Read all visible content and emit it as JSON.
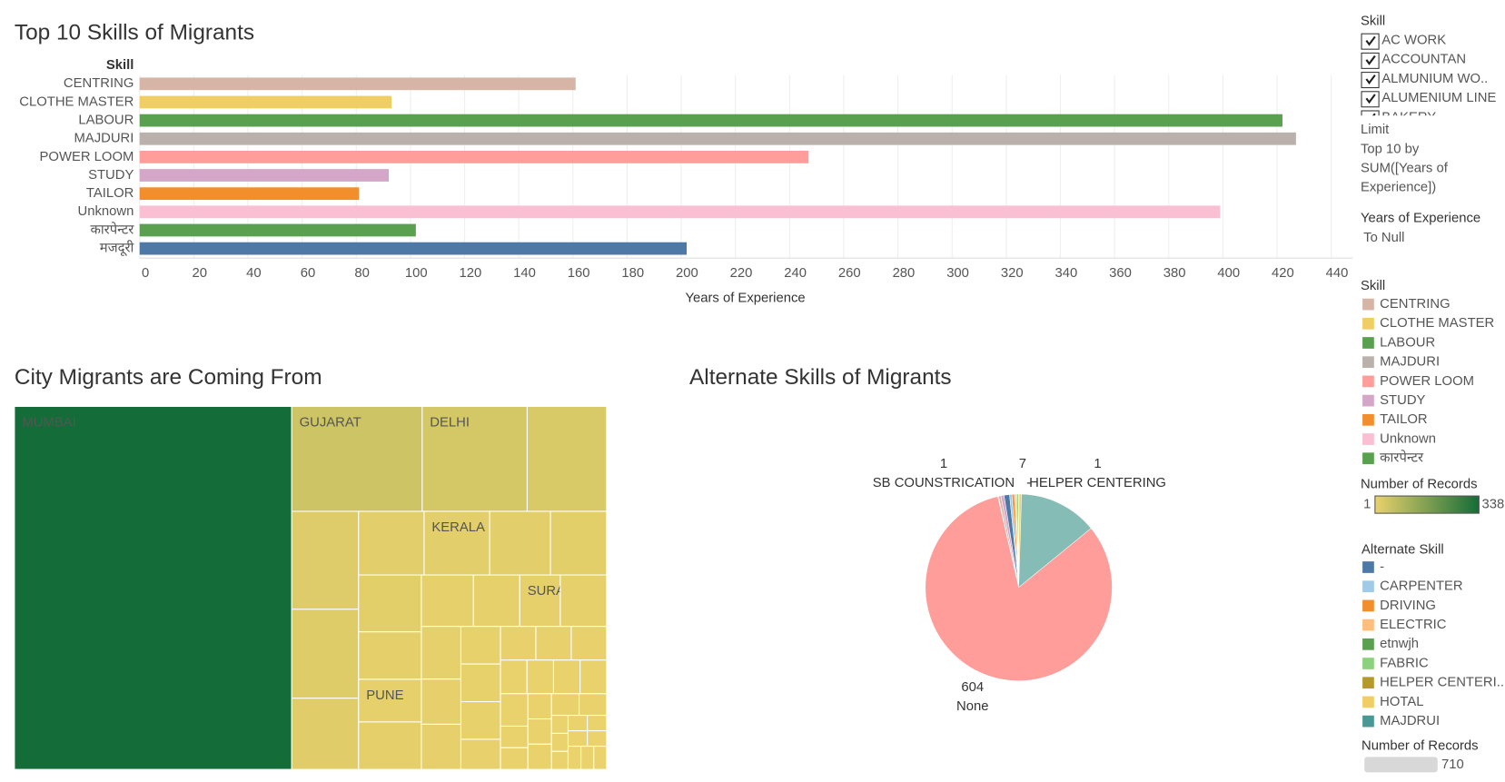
{
  "chart_data": [
    {
      "type": "bar",
      "title": "Top 10 Skills of Migrants",
      "y_label": "Skill",
      "x_label": "Years of Experience",
      "categories": [
        "CENTRING",
        "CLOTHE MASTER",
        "LABOUR",
        "MAJDURI",
        "POWER LOOM",
        "STUDY",
        "TAILOR",
        "Unknown",
        "कारपेन्टर",
        "मजदूरी"
      ],
      "values": [
        161,
        93,
        422,
        427,
        247,
        92,
        81,
        399,
        102,
        202
      ],
      "colors": [
        "#d7b5a6",
        "#f1ce63",
        "#59a14f",
        "#bab0ac",
        "#ff9d9a",
        "#d4a6c8",
        "#f28e2b",
        "#fabfd2",
        "#59a14f",
        "#4e79a7"
      ],
      "xlim": [
        0,
        448
      ],
      "xticks": [
        0,
        20,
        40,
        60,
        80,
        100,
        120,
        140,
        160,
        180,
        200,
        220,
        240,
        260,
        280,
        300,
        320,
        340,
        360,
        380,
        400,
        420,
        440
      ],
      "grid": true
    },
    {
      "type": "treemap",
      "title": "City Migrants are Coming From",
      "categories": [
        "MUMBAI",
        "GUJARAT",
        "DELHI",
        null,
        null,
        null,
        null,
        null,
        "KERALA",
        null,
        null,
        null,
        null,
        "PUNE",
        null,
        null,
        null,
        "SURAT",
        null,
        null,
        null,
        null,
        null,
        null,
        null,
        null,
        null,
        null,
        null,
        null,
        null,
        null,
        null,
        null,
        null,
        null,
        null,
        null,
        null,
        null,
        null,
        null,
        null,
        null,
        null,
        null,
        null,
        null,
        null,
        null,
        null
      ],
      "values": [
        338,
        46,
        37,
        28,
        22,
        20,
        16,
        14,
        14,
        13,
        12,
        12,
        10,
        9,
        10,
        9,
        8,
        7,
        8,
        7,
        6,
        6,
        5,
        5,
        5,
        4,
        4,
        4,
        4,
        3,
        3,
        3,
        3,
        3,
        2,
        2,
        2,
        2,
        2,
        2,
        2,
        1,
        1,
        1,
        1,
        1,
        1,
        1,
        1,
        1,
        1
      ]
    },
    {
      "type": "pie",
      "title": "Alternate Skills of Migrants",
      "categories": [
        "SB COUNSTRICATION",
        null,
        null,
        "-",
        null,
        null,
        null,
        null,
        null,
        "HELPER CENTERING",
        null,
        null,
        "None"
      ],
      "values": [
        1,
        3,
        4,
        7,
        3,
        3,
        2,
        1,
        2,
        1,
        3,
        100,
        604
      ],
      "colors": [
        "#bab0ac",
        "#d7b5a6",
        "#d4a6c8",
        "#4e79a7",
        "#a0cbe8",
        "#f28e2b",
        "#ffbe7d",
        "#59a14f",
        "#8cd17d",
        "#b6992d",
        "#f1ce63",
        "#86bcb6",
        "#ff9d9a"
      ]
    }
  ],
  "sidebar": {
    "skill_filter": {
      "title": "Skill",
      "items": [
        "AC WORK",
        "ACCOUNTAN",
        "ALMUNIUM WO..",
        "ALUMENIUM LINE",
        "BAKERY"
      ]
    },
    "limit": {
      "title": "Limit",
      "lines": [
        "Top 10 by",
        "SUM([Years of",
        "Experience])"
      ]
    },
    "experience_filter": {
      "title": "Years of Experience",
      "value": "To Null"
    },
    "skill_legend": {
      "title": "Skill",
      "items": [
        {
          "name": "CENTRING",
          "color": "#d7b5a6"
        },
        {
          "name": "CLOTHE MASTER",
          "color": "#f1ce63"
        },
        {
          "name": "LABOUR",
          "color": "#59a14f"
        },
        {
          "name": "MAJDURI",
          "color": "#bab0ac"
        },
        {
          "name": "POWER LOOM",
          "color": "#ff9d9a"
        },
        {
          "name": "STUDY",
          "color": "#d4a6c8"
        },
        {
          "name": "TAILOR",
          "color": "#f28e2b"
        },
        {
          "name": "Unknown",
          "color": "#fabfd2"
        },
        {
          "name": "कारपेन्टर",
          "color": "#59a14f"
        }
      ]
    },
    "records_legend": {
      "title": "Number of Records",
      "min": 1,
      "max": 338,
      "colors": [
        "#ead26c",
        "#146c38"
      ]
    },
    "alt_skill_legend": {
      "title": "Alternate Skill",
      "items": [
        {
          "name": "-",
          "color": "#4e79a7"
        },
        {
          "name": "CARPENTER",
          "color": "#a0cbe8"
        },
        {
          "name": "DRIVING",
          "color": "#f28e2b"
        },
        {
          "name": "ELECTRIC",
          "color": "#ffbe7d"
        },
        {
          "name": "etnwjh",
          "color": "#59a14f"
        },
        {
          "name": "FABRIC",
          "color": "#8cd17d"
        },
        {
          "name": "HELPER CENTERI..",
          "color": "#b6992d"
        },
        {
          "name": "HOTAL",
          "color": "#f1ce63"
        },
        {
          "name": "MAJDRUI",
          "color": "#499894"
        }
      ]
    },
    "size_legend": {
      "title": "Number of Records",
      "value": 710
    }
  }
}
